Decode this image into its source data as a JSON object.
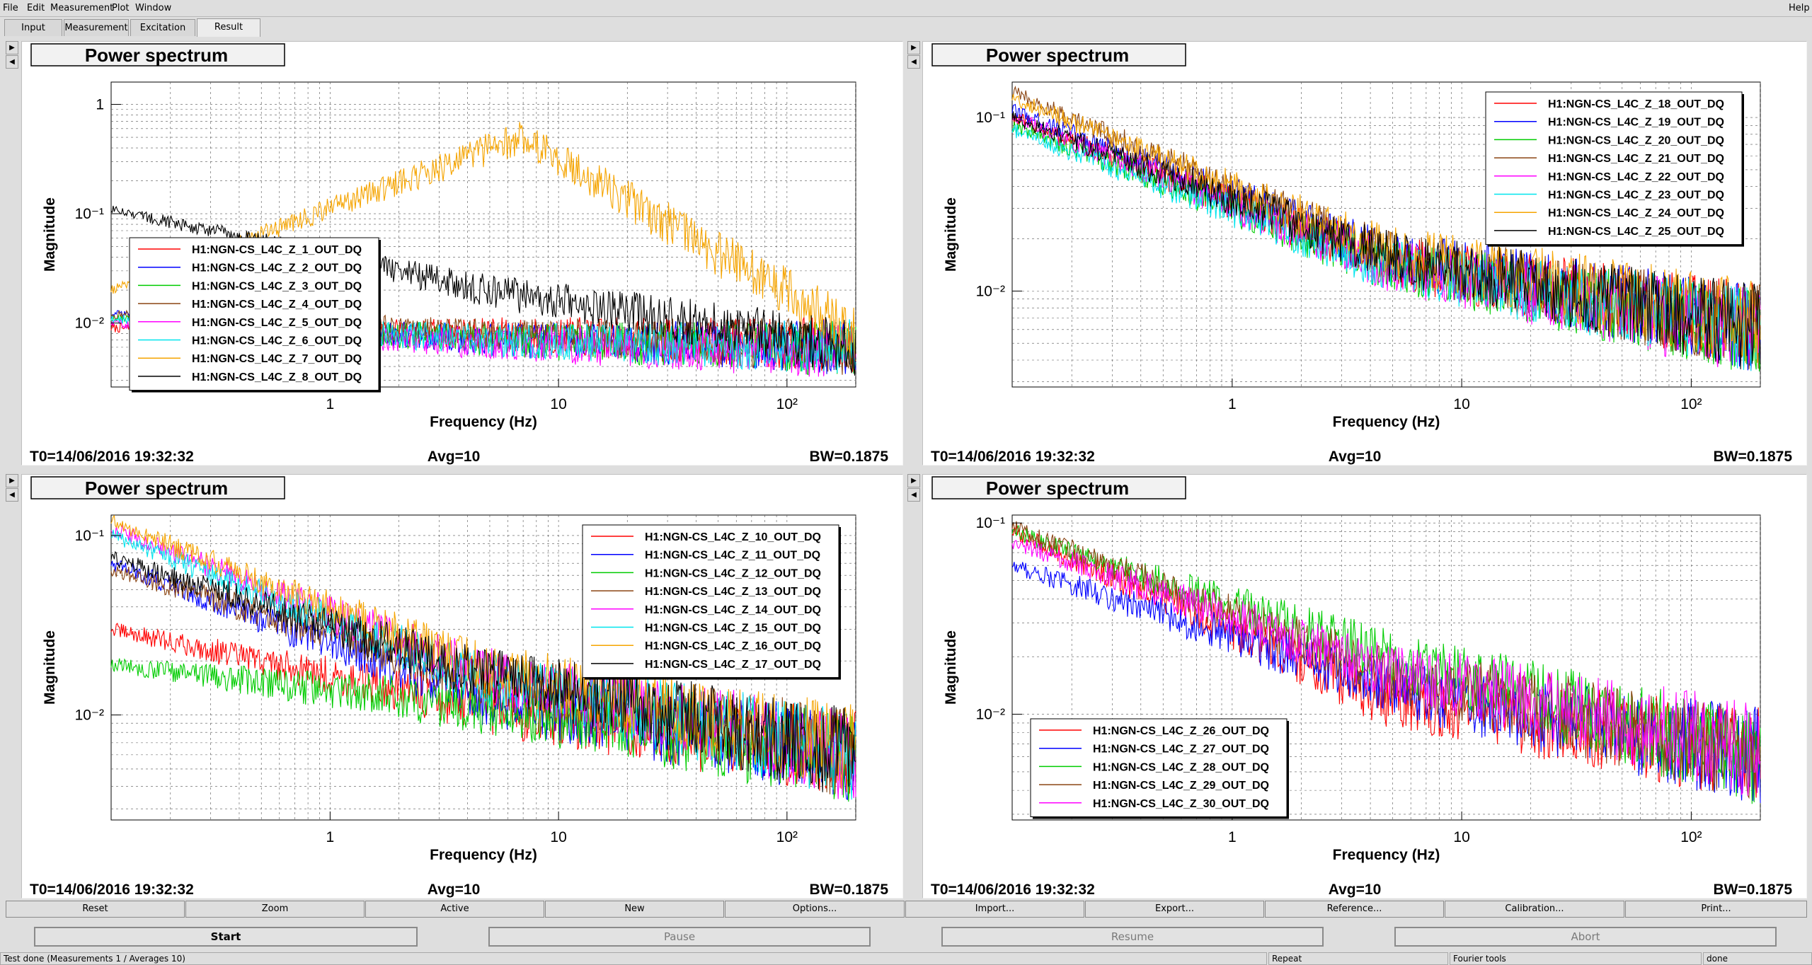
{
  "menubar": {
    "items": [
      "File",
      "Edit",
      "Measurement",
      "Plot",
      "Window"
    ],
    "help": "Help"
  },
  "tabs": [
    "Input",
    "Measurement",
    "Excitation",
    "Result"
  ],
  "active_tab": "Result",
  "plots": [
    {
      "title": "Power spectrum",
      "xlabel": "Frequency (Hz)",
      "ylabel": "Magnitude",
      "x_ticks": [
        "1",
        "10",
        "10²"
      ],
      "y_ticks": [
        "1",
        "10⁻¹",
        "10⁻²"
      ],
      "t0": "T0=14/06/2016 19:32:32",
      "avg": "Avg=10",
      "bw": "BW=0.1875",
      "legend": [
        "H1:NGN-CS_L4C_Z_1_OUT_DQ",
        "H1:NGN-CS_L4C_Z_2_OUT_DQ",
        "H1:NGN-CS_L4C_Z_3_OUT_DQ",
        "H1:NGN-CS_L4C_Z_4_OUT_DQ",
        "H1:NGN-CS_L4C_Z_5_OUT_DQ",
        "H1:NGN-CS_L4C_Z_6_OUT_DQ",
        "H1:NGN-CS_L4C_Z_7_OUT_DQ",
        "H1:NGN-CS_L4C_Z_8_OUT_DQ"
      ]
    },
    {
      "title": "Power spectrum",
      "xlabel": "Frequency (Hz)",
      "ylabel": "Magnitude",
      "x_ticks": [
        "1",
        "10",
        "10²"
      ],
      "y_ticks": [
        "10⁻¹",
        "10⁻²"
      ],
      "t0": "T0=14/06/2016 19:32:32",
      "avg": "Avg=10",
      "bw": "BW=0.1875",
      "legend": [
        "H1:NGN-CS_L4C_Z_18_OUT_DQ",
        "H1:NGN-CS_L4C_Z_19_OUT_DQ",
        "H1:NGN-CS_L4C_Z_20_OUT_DQ",
        "H1:NGN-CS_L4C_Z_21_OUT_DQ",
        "H1:NGN-CS_L4C_Z_22_OUT_DQ",
        "H1:NGN-CS_L4C_Z_23_OUT_DQ",
        "H1:NGN-CS_L4C_Z_24_OUT_DQ",
        "H1:NGN-CS_L4C_Z_25_OUT_DQ"
      ]
    },
    {
      "title": "Power spectrum",
      "xlabel": "Frequency (Hz)",
      "ylabel": "Magnitude",
      "x_ticks": [
        "1",
        "10",
        "10²"
      ],
      "y_ticks": [
        "10⁻¹",
        "10⁻²"
      ],
      "t0": "T0=14/06/2016 19:32:32",
      "avg": "Avg=10",
      "bw": "BW=0.1875",
      "legend": [
        "H1:NGN-CS_L4C_Z_10_OUT_DQ",
        "H1:NGN-CS_L4C_Z_11_OUT_DQ",
        "H1:NGN-CS_L4C_Z_12_OUT_DQ",
        "H1:NGN-CS_L4C_Z_13_OUT_DQ",
        "H1:NGN-CS_L4C_Z_14_OUT_DQ",
        "H1:NGN-CS_L4C_Z_15_OUT_DQ",
        "H1:NGN-CS_L4C_Z_16_OUT_DQ",
        "H1:NGN-CS_L4C_Z_17_OUT_DQ"
      ]
    },
    {
      "title": "Power spectrum",
      "xlabel": "Frequency (Hz)",
      "ylabel": "Magnitude",
      "x_ticks": [
        "1",
        "10",
        "10²"
      ],
      "y_ticks": [
        "10⁻¹",
        "10⁻²"
      ],
      "t0": "T0=14/06/2016 19:32:32",
      "avg": "Avg=10",
      "bw": "BW=0.1875",
      "legend": [
        "H1:NGN-CS_L4C_Z_26_OUT_DQ",
        "H1:NGN-CS_L4C_Z_27_OUT_DQ",
        "H1:NGN-CS_L4C_Z_28_OUT_DQ",
        "H1:NGN-CS_L4C_Z_29_OUT_DQ",
        "H1:NGN-CS_L4C_Z_30_OUT_DQ"
      ]
    }
  ],
  "series_colors": [
    "#ff0000",
    "#0000ff",
    "#00cc00",
    "#8b4513",
    "#ff00ff",
    "#00e5ee",
    "#f5a400",
    "#000000"
  ],
  "chart_data": [
    {
      "type": "line",
      "xscale": "log",
      "yscale": "log",
      "xlim": [
        0.11,
        200
      ],
      "ylim": [
        0.0026,
        1.6
      ],
      "grid": true,
      "legend_position": "left",
      "series": [
        {
          "name": "H1:NGN-CS_L4C_Z_1_OUT_DQ",
          "start": 0.009,
          "mid": 0.008,
          "end": 0.0062
        },
        {
          "name": "H1:NGN-CS_L4C_Z_2_OUT_DQ",
          "start": 0.012,
          "mid": 0.007,
          "end": 0.006
        },
        {
          "name": "H1:NGN-CS_L4C_Z_3_OUT_DQ",
          "start": 0.011,
          "mid": 0.007,
          "end": 0.0058
        },
        {
          "name": "H1:NGN-CS_L4C_Z_4_OUT_DQ",
          "start": 0.012,
          "mid": 0.008,
          "end": 0.006
        },
        {
          "name": "H1:NGN-CS_L4C_Z_5_OUT_DQ",
          "start": 0.01,
          "mid": 0.0065,
          "end": 0.0055
        },
        {
          "name": "H1:NGN-CS_L4C_Z_6_OUT_DQ",
          "start": 0.011,
          "mid": 0.007,
          "end": 0.006
        },
        {
          "name": "H1:NGN-CS_L4C_Z_7_OUT_DQ",
          "start": 0.02,
          "mid": 0.5,
          "end": 0.008
        },
        {
          "name": "H1:NGN-CS_L4C_Z_8_OUT_DQ",
          "start": 0.11,
          "mid": 0.02,
          "end": 0.006
        }
      ]
    },
    {
      "type": "line",
      "xscale": "log",
      "yscale": "log",
      "xlim": [
        0.11,
        200
      ],
      "ylim": [
        0.0028,
        0.16
      ],
      "grid": true,
      "legend_position": "top-right",
      "series": [
        {
          "name": "H1:NGN-CS_L4C_Z_18_OUT_DQ",
          "start": 0.1,
          "mid": 0.015,
          "end": 0.0062
        },
        {
          "name": "H1:NGN-CS_L4C_Z_19_OUT_DQ",
          "start": 0.11,
          "mid": 0.016,
          "end": 0.006
        },
        {
          "name": "H1:NGN-CS_L4C_Z_20_OUT_DQ",
          "start": 0.09,
          "mid": 0.014,
          "end": 0.0058
        },
        {
          "name": "H1:NGN-CS_L4C_Z_21_OUT_DQ",
          "start": 0.14,
          "mid": 0.016,
          "end": 0.006
        },
        {
          "name": "H1:NGN-CS_L4C_Z_22_OUT_DQ",
          "start": 0.1,
          "mid": 0.014,
          "end": 0.0057
        },
        {
          "name": "H1:NGN-CS_L4C_Z_23_OUT_DQ",
          "start": 0.085,
          "mid": 0.014,
          "end": 0.006
        },
        {
          "name": "H1:NGN-CS_L4C_Z_24_OUT_DQ",
          "start": 0.13,
          "mid": 0.017,
          "end": 0.0064
        },
        {
          "name": "H1:NGN-CS_L4C_Z_25_OUT_DQ",
          "start": 0.1,
          "mid": 0.016,
          "end": 0.006
        }
      ]
    },
    {
      "type": "line",
      "xscale": "log",
      "yscale": "log",
      "xlim": [
        0.11,
        200
      ],
      "ylim": [
        0.0026,
        0.13
      ],
      "grid": true,
      "legend_position": "top-right",
      "series": [
        {
          "name": "H1:NGN-CS_L4C_Z_10_OUT_DQ",
          "start": 0.03,
          "mid": 0.011,
          "end": 0.0062
        },
        {
          "name": "H1:NGN-CS_L4C_Z_11_OUT_DQ",
          "start": 0.07,
          "mid": 0.012,
          "end": 0.006
        },
        {
          "name": "H1:NGN-CS_L4C_Z_12_OUT_DQ",
          "start": 0.019,
          "mid": 0.011,
          "end": 0.0058
        },
        {
          "name": "H1:NGN-CS_L4C_Z_13_OUT_DQ",
          "start": 0.065,
          "mid": 0.016,
          "end": 0.006
        },
        {
          "name": "H1:NGN-CS_L4C_Z_14_OUT_DQ",
          "start": 0.11,
          "mid": 0.017,
          "end": 0.0058
        },
        {
          "name": "H1:NGN-CS_L4C_Z_15_OUT_DQ",
          "start": 0.1,
          "mid": 0.016,
          "end": 0.006
        },
        {
          "name": "H1:NGN-CS_L4C_Z_16_OUT_DQ",
          "start": 0.12,
          "mid": 0.018,
          "end": 0.0064
        },
        {
          "name": "H1:NGN-CS_L4C_Z_17_OUT_DQ",
          "start": 0.075,
          "mid": 0.017,
          "end": 0.006
        }
      ]
    },
    {
      "type": "line",
      "xscale": "log",
      "yscale": "log",
      "xlim": [
        0.11,
        200
      ],
      "ylim": [
        0.0028,
        0.11
      ],
      "grid": true,
      "legend_position": "bottom-left",
      "series": [
        {
          "name": "H1:NGN-CS_L4C_Z_26_OUT_DQ",
          "start": 0.09,
          "mid": 0.012,
          "end": 0.0062
        },
        {
          "name": "H1:NGN-CS_L4C_Z_27_OUT_DQ",
          "start": 0.06,
          "mid": 0.014,
          "end": 0.006
        },
        {
          "name": "H1:NGN-CS_L4C_Z_28_OUT_DQ",
          "start": 0.09,
          "mid": 0.02,
          "end": 0.0058
        },
        {
          "name": "H1:NGN-CS_L4C_Z_29_OUT_DQ",
          "start": 0.095,
          "mid": 0.016,
          "end": 0.006
        },
        {
          "name": "H1:NGN-CS_L4C_Z_30_OUT_DQ",
          "start": 0.08,
          "mid": 0.017,
          "end": 0.0065
        }
      ]
    }
  ],
  "toolbar": [
    "Reset",
    "Zoom",
    "Active",
    "New",
    "Options...",
    "Import...",
    "Export...",
    "Reference...",
    "Calibration...",
    "Print..."
  ],
  "controls": {
    "start": "Start",
    "pause": "Pause",
    "resume": "Resume",
    "abort": "Abort"
  },
  "status": {
    "message": "Test done (Measurements 1 / Averages 10)",
    "repeat": "Repeat",
    "tools": "Fourier tools",
    "state": "done"
  }
}
